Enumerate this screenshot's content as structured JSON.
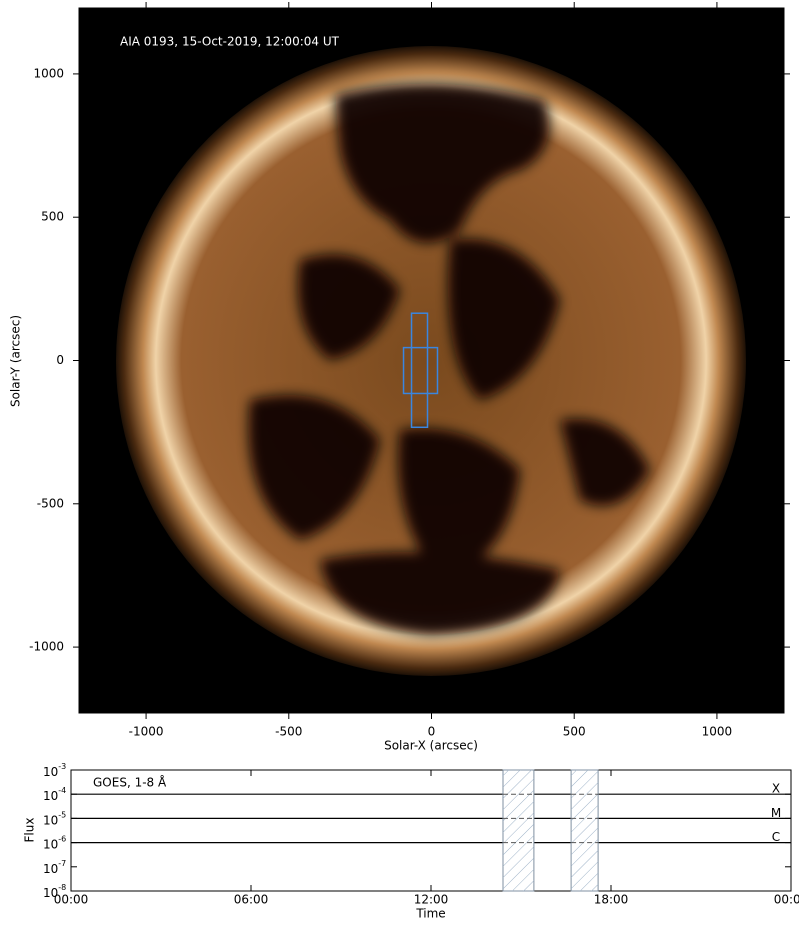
{
  "chart_data": [
    {
      "type": "image",
      "annotation": "AIA 0193, 15-Oct-2019, 12:00:04 UT",
      "xlabel": "Solar-X (arcsec)",
      "ylabel": "Solar-Y (arcsec)",
      "xlim": [
        -1235,
        1235
      ],
      "ylim": [
        -1230,
        1230
      ],
      "xticks": [
        -1000,
        -500,
        0,
        500,
        1000
      ],
      "yticks": [
        -1000,
        -500,
        0,
        500,
        1000
      ],
      "boxes": [
        {
          "x": [
            -70,
            -14
          ],
          "y": [
            -233,
            165
          ]
        },
        {
          "x": [
            -98,
            21
          ],
          "y": [
            -115,
            45
          ]
        }
      ],
      "box_color": "#3a86e0"
    },
    {
      "type": "flux",
      "title": "GOES, 1-8 Å",
      "xlabel": "Time",
      "ylabel": "Flux",
      "log_y": true,
      "xlim": [
        0,
        24
      ],
      "ylim": [
        1e-08,
        0.001
      ],
      "xticks": [
        {
          "value": 0,
          "label": "00:00"
        },
        {
          "value": 6,
          "label": "06:00"
        },
        {
          "value": 12,
          "label": "12:00"
        },
        {
          "value": 18,
          "label": "18:00"
        },
        {
          "value": 24,
          "label": "00:00"
        }
      ],
      "yticks": [
        {
          "value": 1e-08,
          "label": "10",
          "exponent": "-8"
        },
        {
          "value": 1e-07,
          "label": "10",
          "exponent": "-7"
        },
        {
          "value": 1e-06,
          "label": "10",
          "exponent": "-6"
        },
        {
          "value": 1e-05,
          "label": "10",
          "exponent": "-5"
        },
        {
          "value": 0.0001,
          "label": "10",
          "exponent": "-4"
        },
        {
          "value": 0.001,
          "label": "10",
          "exponent": "-3"
        }
      ],
      "levels": [
        {
          "value": 0.0001,
          "label": "X"
        },
        {
          "value": 1e-05,
          "label": "M"
        },
        {
          "value": 1e-06,
          "label": "C"
        }
      ],
      "shaded": [
        [
          14.4,
          15.43
        ],
        [
          16.67,
          17.57
        ]
      ],
      "label_color": "#1010e0"
    }
  ]
}
